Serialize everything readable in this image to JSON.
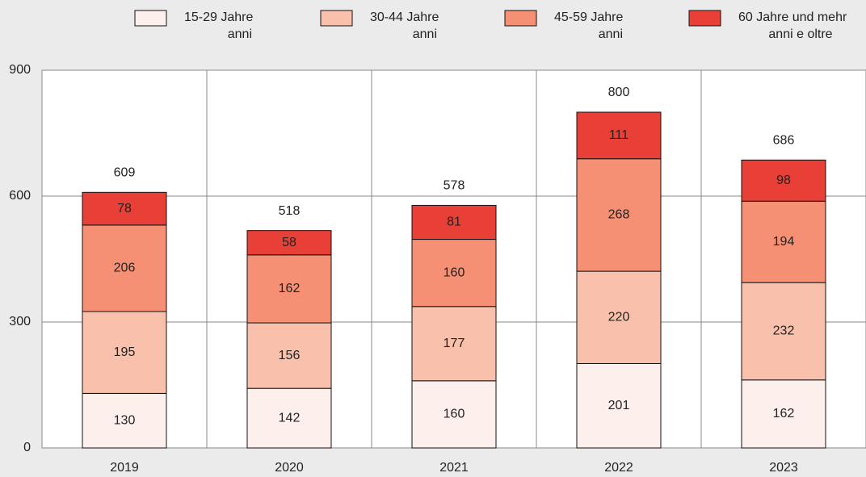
{
  "chart_data": {
    "type": "stacked_bar",
    "categories": [
      "2019",
      "2020",
      "2021",
      "2022",
      "2023"
    ],
    "series": [
      {
        "name": "15-29 Jahre",
        "subname": "anni",
        "color": "#fdf0ec",
        "values": [
          130,
          142,
          160,
          201,
          162
        ]
      },
      {
        "name": "30-44 Jahre",
        "subname": "anni",
        "color": "#f9c1ab",
        "values": [
          195,
          156,
          177,
          220,
          232
        ]
      },
      {
        "name": "45-59 Jahre",
        "subname": "anni",
        "color": "#f59074",
        "values": [
          206,
          162,
          160,
          268,
          194
        ]
      },
      {
        "name": "60 Jahre und mehr",
        "subname": "anni e oltre",
        "color": "#e83f36",
        "values": [
          78,
          58,
          81,
          111,
          98
        ]
      }
    ],
    "totals": [
      609,
      518,
      578,
      800,
      686
    ],
    "ylim": [
      0,
      900
    ],
    "yticks": [
      0,
      300,
      600,
      900
    ],
    "grid": true
  }
}
